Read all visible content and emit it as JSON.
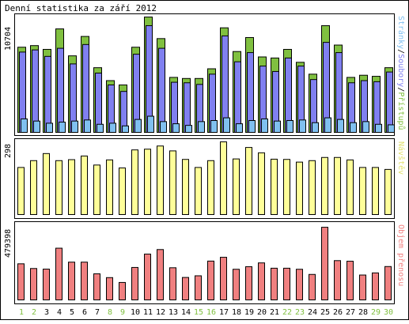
{
  "title": "Denní statistika za září 2012",
  "colors": {
    "background": "#ffffff",
    "frame": "#000000",
    "pristupy": "#80c040",
    "soubory": "#8080f0",
    "stranky": "#80c0f0",
    "navstevy": "#ffff99",
    "objem": "#f08080",
    "weekend_day_label": "#80c040",
    "day_label": "#000000"
  },
  "chart_data": [
    {
      "type": "bar",
      "panel": "requests",
      "categories": [
        "1",
        "2",
        "3",
        "4",
        "5",
        "6",
        "7",
        "8",
        "9",
        "10",
        "11",
        "12",
        "13",
        "14",
        "15",
        "16",
        "17",
        "18",
        "19",
        "20",
        "21",
        "22",
        "23",
        "24",
        "25",
        "26",
        "27",
        "28",
        "29",
        "30"
      ],
      "ymax_label": "10704",
      "ylim": [
        0,
        10704
      ],
      "legend": [
        "Stránky",
        "Soubory",
        "Přístupů"
      ],
      "legend_separator": "/",
      "series": [
        {
          "name": "Přístupů",
          "values": [
            7900,
            8050,
            7700,
            9600,
            7100,
            8900,
            6000,
            4800,
            4400,
            7900,
            10700,
            8700,
            5100,
            5000,
            5000,
            5900,
            9700,
            7500,
            8800,
            7000,
            6900,
            7700,
            6500,
            5400,
            9900,
            8100,
            5100,
            5300,
            5200,
            6000
          ]
        },
        {
          "name": "Soubory",
          "values": [
            7450,
            7650,
            7050,
            7800,
            6350,
            8150,
            5500,
            4400,
            3800,
            7250,
            9900,
            7800,
            4650,
            4600,
            4450,
            5400,
            8950,
            6550,
            7400,
            6150,
            5650,
            6900,
            6150,
            4900,
            8350,
            7400,
            4600,
            4800,
            4700,
            5600
          ]
        },
        {
          "name": "Stránky",
          "values": [
            1250,
            1050,
            850,
            950,
            1050,
            1150,
            750,
            850,
            600,
            1200,
            1500,
            1000,
            800,
            650,
            1000,
            1100,
            1350,
            800,
            1100,
            1250,
            1050,
            1100,
            1150,
            900,
            1350,
            1200,
            900,
            1000,
            750,
            700
          ]
        }
      ]
    },
    {
      "type": "bar",
      "panel": "visits",
      "categories": [
        "1",
        "2",
        "3",
        "4",
        "5",
        "6",
        "7",
        "8",
        "9",
        "10",
        "11",
        "12",
        "13",
        "14",
        "15",
        "16",
        "17",
        "18",
        "19",
        "20",
        "21",
        "22",
        "23",
        "24",
        "25",
        "26",
        "27",
        "28",
        "29",
        "30"
      ],
      "ymax_label": "298",
      "ylim": [
        0,
        298
      ],
      "legend": [
        "Návštěv"
      ],
      "series": [
        {
          "name": "Návštěv",
          "values": [
            193,
            221,
            250,
            221,
            225,
            240,
            203,
            224,
            191,
            265,
            268,
            281,
            261,
            226,
            193,
            221,
            298,
            228,
            275,
            253,
            227,
            226,
            215,
            221,
            234,
            234,
            224,
            193,
            193,
            185
          ]
        }
      ]
    },
    {
      "type": "bar",
      "panel": "traffic",
      "categories": [
        "1",
        "2",
        "3",
        "4",
        "5",
        "6",
        "7",
        "8",
        "9",
        "10",
        "11",
        "12",
        "13",
        "14",
        "15",
        "16",
        "17",
        "18",
        "19",
        "20",
        "21",
        "22",
        "23",
        "24",
        "25",
        "26",
        "27",
        "28",
        "29",
        "30"
      ],
      "ymax_label": "479398",
      "ylim": [
        0,
        479398
      ],
      "legend": [
        "Objem přenosu"
      ],
      "series": [
        {
          "name": "Objem přenosu",
          "values": [
            238000,
            207000,
            203000,
            341000,
            249000,
            249000,
            172000,
            147000,
            115000,
            214000,
            302000,
            332000,
            212000,
            148000,
            159000,
            256000,
            281000,
            202000,
            219000,
            244000,
            209000,
            209000,
            202000,
            168000,
            479000,
            259000,
            255000,
            164000,
            178000,
            220000
          ]
        }
      ]
    }
  ],
  "days": {
    "labels": [
      "1",
      "2",
      "3",
      "4",
      "5",
      "6",
      "7",
      "8",
      "9",
      "10",
      "11",
      "12",
      "13",
      "14",
      "15",
      "16",
      "17",
      "18",
      "19",
      "20",
      "21",
      "22",
      "23",
      "24",
      "25",
      "26",
      "27",
      "28",
      "29",
      "30"
    ],
    "weekend": [
      true,
      true,
      false,
      false,
      false,
      false,
      false,
      true,
      true,
      false,
      false,
      false,
      false,
      false,
      true,
      true,
      false,
      false,
      false,
      false,
      false,
      true,
      true,
      false,
      false,
      false,
      false,
      false,
      true,
      true
    ]
  }
}
